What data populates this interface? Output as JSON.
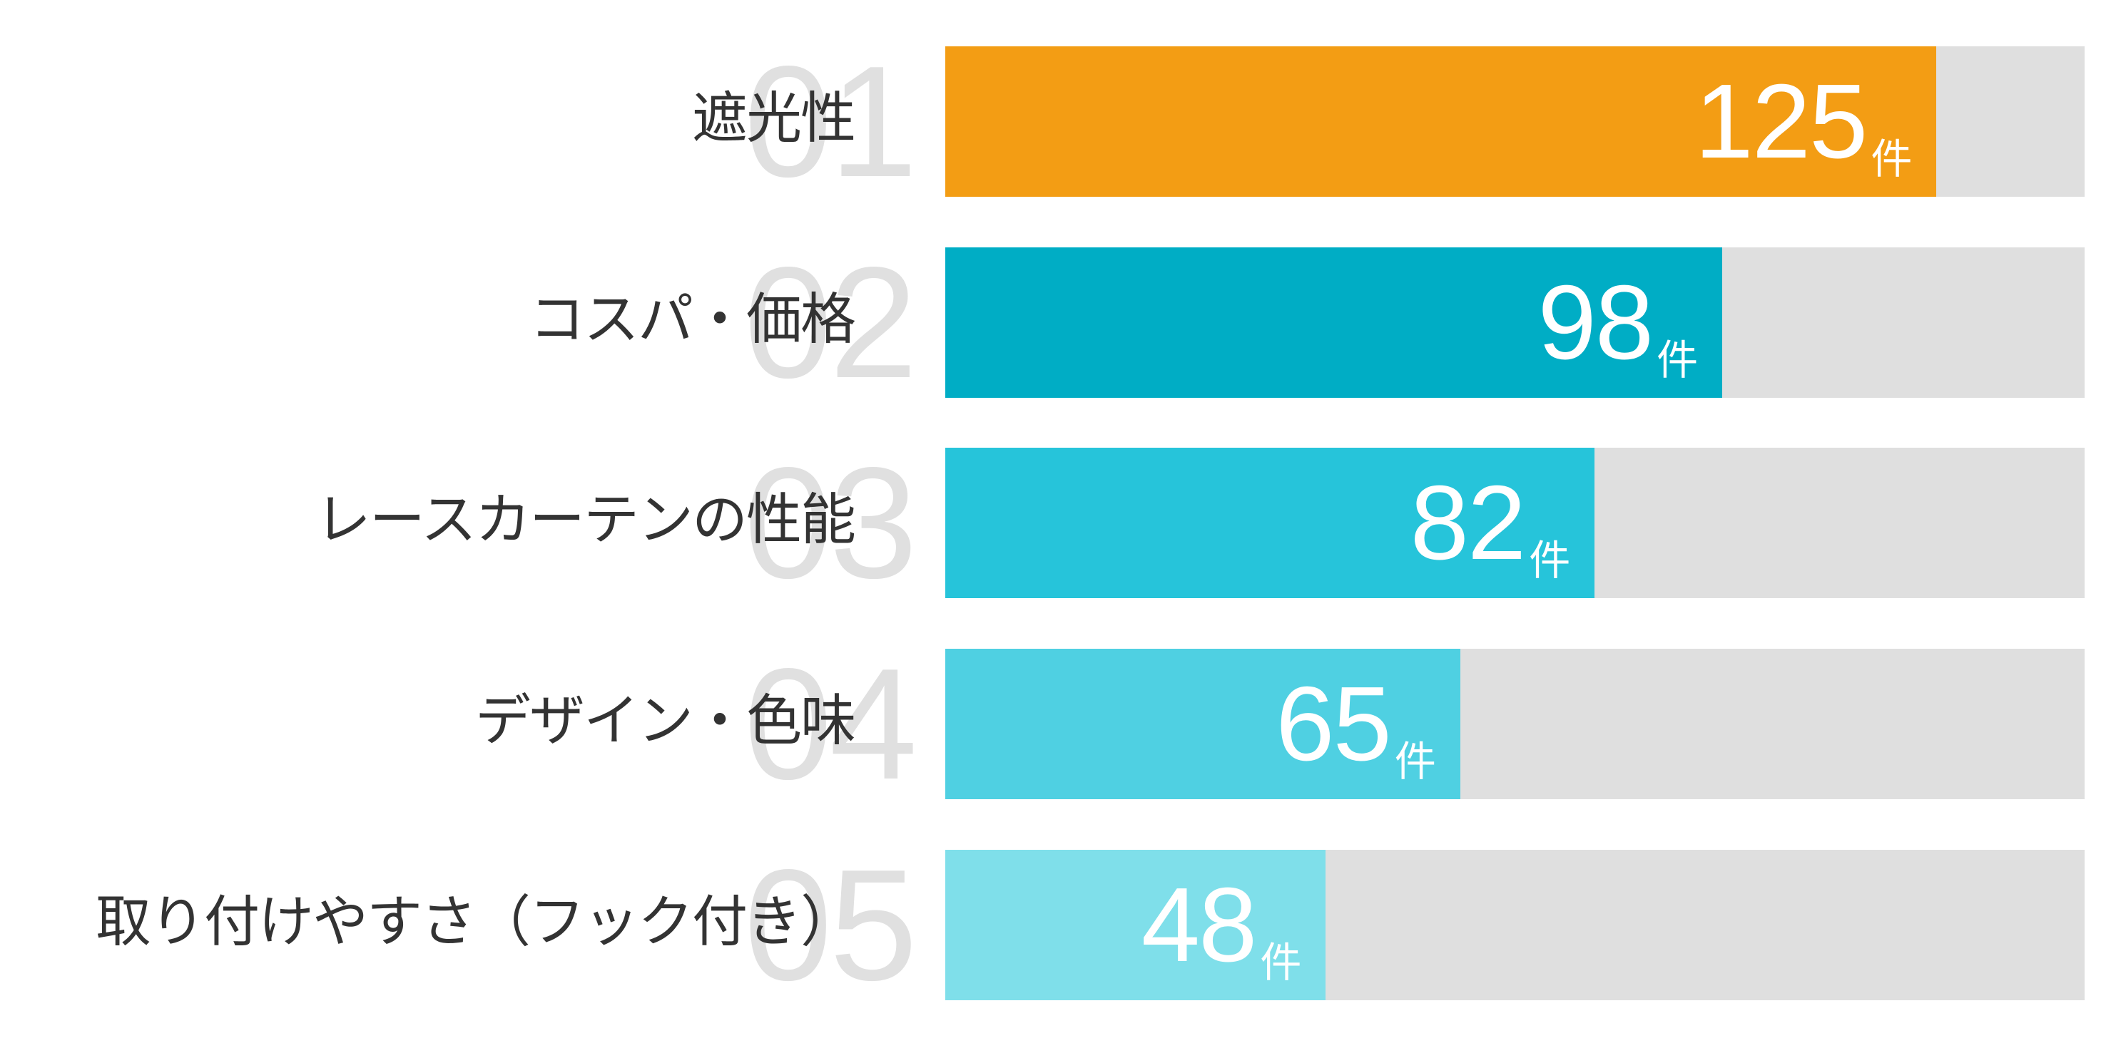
{
  "chart_data": {
    "type": "bar",
    "orientation": "horizontal",
    "title": "",
    "xlabel": "",
    "ylabel": "",
    "unit": "件",
    "grid": false,
    "legend": null,
    "categories": [
      "遮光性",
      "コスパ・価格",
      "レースカーテンの性能",
      "デザイン・色味",
      "取り付けやすさ（フック付き）"
    ],
    "ranks": [
      "01",
      "02",
      "03",
      "04",
      "05"
    ],
    "values": [
      125,
      98,
      82,
      65,
      48
    ],
    "xlim": [
      0,
      144
    ],
    "colors": [
      "#f39d14",
      "#00adc5",
      "#26c4da",
      "#4fd0e2",
      "#7fdfea"
    ],
    "track_color": "#dfdfdf"
  },
  "rows": [
    {
      "rank": "01",
      "label": "遮光性",
      "value": "125",
      "unit": "件",
      "color": "#f39d14",
      "fill_pct": 87.0
    },
    {
      "rank": "02",
      "label": "コスパ・価格",
      "value": "98",
      "unit": "件",
      "color": "#00adc5",
      "fill_pct": 68.2
    },
    {
      "rank": "03",
      "label": "レースカーテンの性能",
      "value": "82",
      "unit": "件",
      "color": "#26c4da",
      "fill_pct": 57.0
    },
    {
      "rank": "04",
      "label": "デザイン・色味",
      "value": "65",
      "unit": "件",
      "color": "#4fd0e2",
      "fill_pct": 45.2
    },
    {
      "rank": "05",
      "label": "取り付けやすさ（フック付き）",
      "value": "48",
      "unit": "件",
      "color": "#7fdfea",
      "fill_pct": 33.4
    }
  ]
}
